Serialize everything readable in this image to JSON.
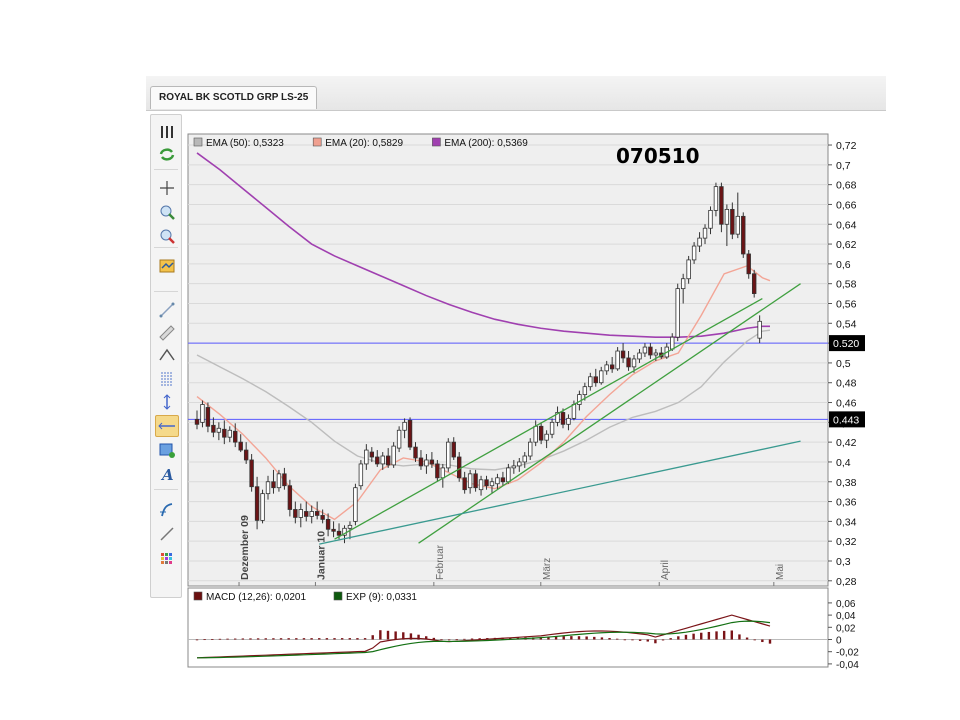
{
  "window": {
    "tab_label": "ROYAL BK SCOTLD GRP LS-25"
  },
  "title": "070510",
  "toolbar": {
    "items": [
      {
        "name": "bars-icon"
      },
      {
        "name": "refresh-icon"
      },
      {
        "name": "crosshair-icon"
      },
      {
        "name": "zoom-in-icon"
      },
      {
        "name": "zoom-out-icon"
      },
      {
        "name": "indicator-icon"
      },
      {
        "name": "line-tool-icon"
      },
      {
        "name": "ruler-icon"
      },
      {
        "name": "curve-tool-icon"
      },
      {
        "name": "fibonacci-icon"
      },
      {
        "name": "vertical-line-icon"
      },
      {
        "name": "horizontal-line-icon"
      },
      {
        "name": "rectangle-tool-icon"
      },
      {
        "name": "text-tool-icon"
      },
      {
        "name": "cycle-tool-icon"
      },
      {
        "name": "trend-arrow-icon"
      },
      {
        "name": "palette-icon"
      }
    ]
  },
  "chart_data": [
    {
      "type": "candlestick",
      "legend": [
        {
          "label": "EMA (50): 0,5323",
          "color": "#b8b8b8"
        },
        {
          "label": "EMA (20): 0,5829",
          "color": "#f0a090"
        },
        {
          "label": "EMA (200): 0,5369",
          "color": "#a040b0"
        }
      ],
      "ylim": [
        0.275,
        0.73
      ],
      "y_ticks": [
        "0,28",
        "0,3",
        "0,32",
        "0,34",
        "0,36",
        "0,38",
        "0,4",
        "0,42",
        "0,44",
        "0,46",
        "0,48",
        "0,5",
        "0,52",
        "0,54",
        "0,56",
        "0,58",
        "0,6",
        "0,62",
        "0,64",
        "0,66",
        "0,68",
        "0,7",
        "0,72"
      ],
      "x_labels": [
        {
          "label": "Dezember 09",
          "day": 11
        },
        {
          "label": "Januar 10",
          "day": 31
        },
        {
          "label": "Februar",
          "day": 62
        },
        {
          "label": "März",
          "day": 90
        },
        {
          "label": "April",
          "day": 121
        },
        {
          "label": "Mai",
          "day": 151
        }
      ],
      "x_range_days": [
        0,
        158
      ],
      "horizontal_lines": [
        {
          "value": 0.52,
          "label": "0.520",
          "color": "#5a5aff"
        },
        {
          "value": 0.443,
          "label": "0.443",
          "color": "#5a5aff"
        }
      ],
      "trend_lines": [
        {
          "color": "#40a040",
          "points": [
            [
              58,
              0.318
            ],
            [
              158,
              0.58
            ]
          ]
        },
        {
          "color": "#3a9a90",
          "points": [
            [
              32,
              0.317
            ],
            [
              158,
              0.421
            ]
          ]
        },
        {
          "color": "#40a040",
          "points": [
            [
              36,
              0.322
            ],
            [
              148,
              0.565
            ]
          ]
        }
      ],
      "ema200": [
        [
          0,
          0.712
        ],
        [
          6,
          0.695
        ],
        [
          12,
          0.676
        ],
        [
          18,
          0.657
        ],
        [
          24,
          0.638
        ],
        [
          30,
          0.62
        ],
        [
          36,
          0.608
        ],
        [
          42,
          0.598
        ],
        [
          48,
          0.588
        ],
        [
          54,
          0.578
        ],
        [
          60,
          0.568
        ],
        [
          66,
          0.559
        ],
        [
          72,
          0.551
        ],
        [
          78,
          0.544
        ],
        [
          84,
          0.539
        ],
        [
          90,
          0.535
        ],
        [
          96,
          0.532
        ],
        [
          102,
          0.53
        ],
        [
          108,
          0.528
        ],
        [
          114,
          0.527
        ],
        [
          120,
          0.526
        ],
        [
          126,
          0.526
        ],
        [
          132,
          0.527
        ],
        [
          138,
          0.53
        ],
        [
          144,
          0.535
        ],
        [
          148,
          0.537
        ],
        [
          150,
          0.537
        ]
      ],
      "ema50": [
        [
          0,
          0.508
        ],
        [
          6,
          0.496
        ],
        [
          12,
          0.484
        ],
        [
          18,
          0.471
        ],
        [
          24,
          0.456
        ],
        [
          30,
          0.44
        ],
        [
          36,
          0.421
        ],
        [
          42,
          0.406
        ],
        [
          48,
          0.399
        ],
        [
          54,
          0.396
        ],
        [
          60,
          0.398
        ],
        [
          66,
          0.397
        ],
        [
          72,
          0.393
        ],
        [
          78,
          0.392
        ],
        [
          84,
          0.396
        ],
        [
          90,
          0.402
        ],
        [
          96,
          0.411
        ],
        [
          102,
          0.422
        ],
        [
          108,
          0.435
        ],
        [
          114,
          0.445
        ],
        [
          120,
          0.451
        ],
        [
          126,
          0.46
        ],
        [
          132,
          0.476
        ],
        [
          138,
          0.501
        ],
        [
          144,
          0.522
        ],
        [
          148,
          0.532
        ],
        [
          150,
          0.533
        ]
      ],
      "ema20": [
        [
          0,
          0.466
        ],
        [
          6,
          0.448
        ],
        [
          12,
          0.428
        ],
        [
          18,
          0.404
        ],
        [
          24,
          0.376
        ],
        [
          30,
          0.355
        ],
        [
          36,
          0.342
        ],
        [
          42,
          0.36
        ],
        [
          48,
          0.392
        ],
        [
          54,
          0.404
        ],
        [
          60,
          0.4
        ],
        [
          66,
          0.389
        ],
        [
          72,
          0.378
        ],
        [
          78,
          0.373
        ],
        [
          84,
          0.382
        ],
        [
          90,
          0.399
        ],
        [
          96,
          0.42
        ],
        [
          102,
          0.446
        ],
        [
          108,
          0.468
        ],
        [
          114,
          0.488
        ],
        [
          120,
          0.502
        ],
        [
          126,
          0.51
        ],
        [
          132,
          0.548
        ],
        [
          138,
          0.59
        ],
        [
          144,
          0.598
        ],
        [
          148,
          0.586
        ],
        [
          150,
          0.583
        ]
      ],
      "candles": [
        [
          0,
          0.443,
          0.452,
          0.433,
          0.438
        ],
        [
          1,
          0.44,
          0.462,
          0.435,
          0.458
        ],
        [
          2,
          0.455,
          0.46,
          0.43,
          0.436
        ],
        [
          3,
          0.437,
          0.445,
          0.425,
          0.43
        ],
        [
          4,
          0.43,
          0.44,
          0.422,
          0.434
        ],
        [
          5,
          0.433,
          0.442,
          0.418,
          0.425
        ],
        [
          6,
          0.425,
          0.436,
          0.42,
          0.432
        ],
        [
          7,
          0.431,
          0.439,
          0.415,
          0.42
        ],
        [
          8,
          0.42,
          0.428,
          0.41,
          0.412
        ],
        [
          9,
          0.412,
          0.42,
          0.398,
          0.402
        ],
        [
          10,
          0.402,
          0.408,
          0.37,
          0.375
        ],
        [
          11,
          0.375,
          0.385,
          0.332,
          0.341
        ],
        [
          12,
          0.341,
          0.372,
          0.338,
          0.368
        ],
        [
          13,
          0.368,
          0.386,
          0.362,
          0.38
        ],
        [
          14,
          0.38,
          0.392,
          0.368,
          0.374
        ],
        [
          15,
          0.374,
          0.392,
          0.37,
          0.388
        ],
        [
          16,
          0.388,
          0.394,
          0.372,
          0.376
        ],
        [
          17,
          0.376,
          0.382,
          0.345,
          0.352
        ],
        [
          18,
          0.352,
          0.36,
          0.338,
          0.344
        ],
        [
          19,
          0.344,
          0.358,
          0.334,
          0.352
        ],
        [
          20,
          0.35,
          0.36,
          0.34,
          0.345
        ],
        [
          21,
          0.345,
          0.356,
          0.338,
          0.35
        ],
        [
          22,
          0.35,
          0.36,
          0.342,
          0.346
        ],
        [
          23,
          0.346,
          0.352,
          0.338,
          0.342
        ],
        [
          24,
          0.342,
          0.348,
          0.325,
          0.332
        ],
        [
          25,
          0.332,
          0.34,
          0.324,
          0.33
        ],
        [
          26,
          0.33,
          0.338,
          0.322,
          0.326
        ],
        [
          27,
          0.326,
          0.336,
          0.318,
          0.333
        ],
        [
          28,
          0.333,
          0.34,
          0.322,
          0.336
        ],
        [
          29,
          0.34,
          0.378,
          0.336,
          0.374
        ],
        [
          30,
          0.376,
          0.402,
          0.372,
          0.398
        ],
        [
          31,
          0.398,
          0.418,
          0.392,
          0.412
        ],
        [
          32,
          0.41,
          0.415,
          0.4,
          0.405
        ],
        [
          33,
          0.405,
          0.412,
          0.395,
          0.398
        ],
        [
          34,
          0.398,
          0.41,
          0.392,
          0.406
        ],
        [
          35,
          0.406,
          0.414,
          0.394,
          0.397
        ],
        [
          36,
          0.397,
          0.42,
          0.394,
          0.416
        ],
        [
          37,
          0.414,
          0.436,
          0.41,
          0.432
        ],
        [
          38,
          0.432,
          0.444,
          0.424,
          0.44
        ],
        [
          39,
          0.442,
          0.445,
          0.412,
          0.415
        ],
        [
          40,
          0.415,
          0.42,
          0.4,
          0.404
        ],
        [
          41,
          0.404,
          0.412,
          0.392,
          0.396
        ],
        [
          42,
          0.396,
          0.408,
          0.388,
          0.402
        ],
        [
          43,
          0.402,
          0.41,
          0.394,
          0.398
        ],
        [
          44,
          0.398,
          0.402,
          0.38,
          0.384
        ],
        [
          45,
          0.384,
          0.398,
          0.374,
          0.394
        ],
        [
          46,
          0.394,
          0.424,
          0.39,
          0.42
        ],
        [
          47,
          0.42,
          0.425,
          0.402,
          0.405
        ],
        [
          48,
          0.405,
          0.41,
          0.38,
          0.384
        ],
        [
          49,
          0.384,
          0.39,
          0.368,
          0.372
        ],
        [
          50,
          0.374,
          0.392,
          0.368,
          0.388
        ],
        [
          51,
          0.388,
          0.392,
          0.37,
          0.374
        ],
        [
          52,
          0.372,
          0.386,
          0.366,
          0.382
        ],
        [
          53,
          0.382,
          0.386,
          0.372,
          0.376
        ],
        [
          54,
          0.376,
          0.384,
          0.368,
          0.38
        ],
        [
          55,
          0.378,
          0.388,
          0.372,
          0.384
        ],
        [
          56,
          0.384,
          0.39,
          0.376,
          0.38
        ],
        [
          57,
          0.38,
          0.398,
          0.378,
          0.394
        ],
        [
          58,
          0.394,
          0.402,
          0.388,
          0.396
        ],
        [
          59,
          0.396,
          0.404,
          0.39,
          0.4
        ],
        [
          60,
          0.4,
          0.41,
          0.394,
          0.406
        ],
        [
          61,
          0.406,
          0.424,
          0.402,
          0.42
        ],
        [
          62,
          0.42,
          0.442,
          0.416,
          0.436
        ],
        [
          63,
          0.436,
          0.44,
          0.418,
          0.422
        ],
        [
          64,
          0.422,
          0.432,
          0.414,
          0.428
        ],
        [
          65,
          0.428,
          0.444,
          0.424,
          0.44
        ],
        [
          66,
          0.44,
          0.456,
          0.436,
          0.45
        ],
        [
          67,
          0.45,
          0.454,
          0.434,
          0.438
        ],
        [
          68,
          0.438,
          0.448,
          0.432,
          0.444
        ],
        [
          69,
          0.444,
          0.462,
          0.442,
          0.458
        ],
        [
          70,
          0.458,
          0.472,
          0.452,
          0.468
        ],
        [
          71,
          0.468,
          0.48,
          0.462,
          0.476
        ],
        [
          72,
          0.476,
          0.49,
          0.472,
          0.486
        ],
        [
          73,
          0.486,
          0.494,
          0.476,
          0.48
        ],
        [
          74,
          0.48,
          0.496,
          0.478,
          0.492
        ],
        [
          75,
          0.492,
          0.502,
          0.488,
          0.498
        ],
        [
          76,
          0.498,
          0.506,
          0.49,
          0.494
        ],
        [
          77,
          0.494,
          0.516,
          0.492,
          0.512
        ],
        [
          78,
          0.512,
          0.52,
          0.5,
          0.505
        ],
        [
          79,
          0.505,
          0.512,
          0.492,
          0.496
        ],
        [
          80,
          0.496,
          0.508,
          0.49,
          0.504
        ],
        [
          81,
          0.504,
          0.514,
          0.5,
          0.51
        ],
        [
          82,
          0.51,
          0.52,
          0.506,
          0.516
        ],
        [
          83,
          0.516,
          0.52,
          0.504,
          0.508
        ],
        [
          84,
          0.508,
          0.514,
          0.502,
          0.51
        ],
        [
          85,
          0.51,
          0.516,
          0.504,
          0.506
        ],
        [
          86,
          0.506,
          0.52,
          0.504,
          0.516
        ],
        [
          87,
          0.514,
          0.53,
          0.512,
          0.526
        ],
        [
          88,
          0.526,
          0.58,
          0.522,
          0.575
        ],
        [
          89,
          0.575,
          0.59,
          0.56,
          0.585
        ],
        [
          90,
          0.585,
          0.608,
          0.58,
          0.604
        ],
        [
          91,
          0.604,
          0.622,
          0.6,
          0.618
        ],
        [
          92,
          0.618,
          0.632,
          0.612,
          0.626
        ],
        [
          93,
          0.626,
          0.64,
          0.62,
          0.636
        ],
        [
          94,
          0.636,
          0.658,
          0.63,
          0.654
        ],
        [
          95,
          0.654,
          0.682,
          0.648,
          0.678
        ],
        [
          96,
          0.678,
          0.682,
          0.632,
          0.64
        ],
        [
          97,
          0.64,
          0.66,
          0.618,
          0.655
        ],
        [
          98,
          0.655,
          0.662,
          0.625,
          0.63
        ],
        [
          99,
          0.63,
          0.672,
          0.626,
          0.648
        ],
        [
          100,
          0.648,
          0.652,
          0.606,
          0.61
        ],
        [
          101,
          0.61,
          0.614,
          0.585,
          0.59
        ],
        [
          102,
          0.59,
          0.594,
          0.566,
          0.57
        ],
        [
          103,
          0.525,
          0.548,
          0.52,
          0.542
        ]
      ]
    },
    {
      "type": "macd",
      "legend": [
        {
          "label": "MACD (12,26): 0,0201",
          "color": "#6b1010"
        },
        {
          "label": "EXP (9): 0,0331",
          "color": "#0e5a0e"
        }
      ],
      "ylim": [
        -0.048,
        0.068
      ],
      "y_ticks": [
        "0,06",
        "0,04",
        "0,02",
        "0",
        "-0,02",
        "-0,04"
      ]
    }
  ]
}
